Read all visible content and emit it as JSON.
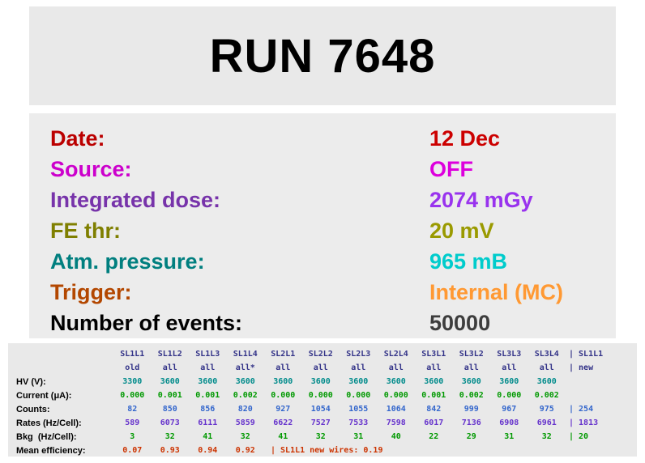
{
  "title": "RUN 7648",
  "info_rows": [
    {
      "key": "date",
      "label": "Date:",
      "value": "12 Dec",
      "label_color": "#bb0000",
      "value_color": "#cc0000"
    },
    {
      "key": "source",
      "label": "Source:",
      "value": "OFF",
      "label_color": "#cc00cc",
      "value_color": "#dd00dd"
    },
    {
      "key": "integrated-dose",
      "label": "Integrated dose:",
      "value": "2074 mGy",
      "label_color": "#7733aa",
      "value_color": "#9933ee"
    },
    {
      "key": "fe-thr",
      "label": "FE thr:",
      "value": "20 mV",
      "label_color": "#7f7f00",
      "value_color": "#9a9a00"
    },
    {
      "key": "atm-pressure",
      "label": "Atm. pressure:",
      "value": "965 mB",
      "label_color": "#007f7f",
      "value_color": "#00cccc"
    },
    {
      "key": "trigger",
      "label": "Trigger:",
      "value": "Internal (MC)",
      "label_color": "#b34700",
      "value_color": "#ff9933"
    },
    {
      "key": "number-of-events",
      "label": "Number of events:",
      "value": "50000",
      "label_color": "#000000",
      "value_color": "#3d3d3d"
    }
  ],
  "table": {
    "header_color": "#333388",
    "label_color": "#000000",
    "columns": [
      "SL1L1",
      "SL1L2",
      "SL1L3",
      "SL1L4",
      "SL2L1",
      "SL2L2",
      "SL2L3",
      "SL2L4",
      "SL3L1",
      "SL3L2",
      "SL3L3",
      "SL3L4"
    ],
    "extra_header": "| SL1L1",
    "subheader": [
      "old",
      "all",
      "all",
      "all*",
      "all",
      "all",
      "all",
      "all",
      "all",
      "all",
      "all",
      "all"
    ],
    "extra_subheader": "| new",
    "rows": [
      {
        "key": "hv",
        "label": "HV (V):",
        "color": "#008b8b",
        "values": [
          "3300",
          "3600",
          "3600",
          "3600",
          "3600",
          "3600",
          "3600",
          "3600",
          "3600",
          "3600",
          "3600",
          "3600"
        ],
        "extra": ""
      },
      {
        "key": "current",
        "label": "Current (μA):",
        "color": "#009900",
        "values": [
          "0.000",
          "0.001",
          "0.001",
          "0.002",
          "0.000",
          "0.000",
          "0.000",
          "0.000",
          "0.001",
          "0.002",
          "0.000",
          "0.002"
        ],
        "extra": ""
      },
      {
        "key": "counts",
        "label": "Counts:",
        "color": "#3366cc",
        "values": [
          "82",
          "850",
          "856",
          "820",
          "927",
          "1054",
          "1055",
          "1064",
          "842",
          "999",
          "967",
          "975"
        ],
        "extra": "| 254"
      },
      {
        "key": "rates",
        "label": "Rates (Hz/Cell):",
        "color": "#6633cc",
        "values": [
          "589",
          "6073",
          "6111",
          "5859",
          "6622",
          "7527",
          "7533",
          "7598",
          "6017",
          "7136",
          "6908",
          "6961"
        ],
        "extra": "| 1813"
      },
      {
        "key": "bkg",
        "label": "Bkg  (Hz/Cell):",
        "color": "#009900",
        "values": [
          "3",
          "32",
          "41",
          "32",
          "41",
          "32",
          "31",
          "40",
          "22",
          "29",
          "31",
          "32"
        ],
        "extra": "| 20"
      },
      {
        "key": "mean-efficiency",
        "label": "Mean efficiency:",
        "color": "#cc3300",
        "values": [
          "0.07",
          "0.93",
          "0.94",
          "0.92"
        ],
        "span_text": "| SL1L1 new wires: 0.19"
      }
    ]
  }
}
